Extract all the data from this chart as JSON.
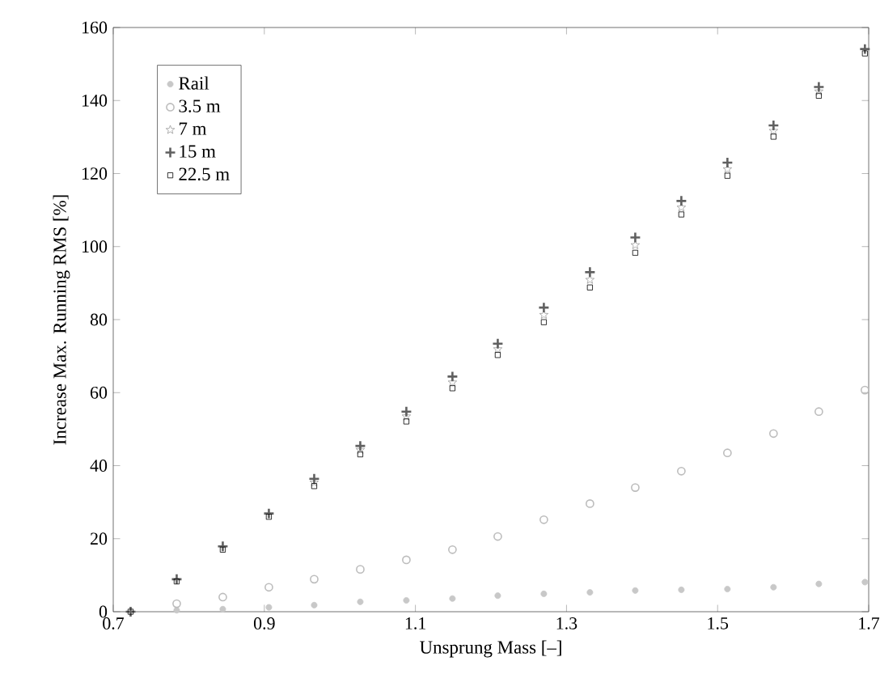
{
  "chart_data": {
    "type": "scatter",
    "xlabel": "Unsprung Mass [–]",
    "ylabel": "Increase Max. Running RMS [%]",
    "x": [
      0.723,
      0.784,
      0.845,
      0.906,
      0.966,
      1.027,
      1.088,
      1.149,
      1.209,
      1.27,
      1.331,
      1.391,
      1.452,
      1.513,
      1.574,
      1.634,
      1.695
    ],
    "series": [
      {
        "name": "Rail",
        "color": "#c8c8c8",
        "marker": "circle",
        "values": [
          null,
          0.4,
          0.7,
          1.2,
          1.8,
          2.7,
          3.1,
          3.6,
          4.4,
          4.9,
          5.3,
          5.8,
          6.0,
          6.2,
          6.7,
          7.6,
          8.1
        ]
      },
      {
        "name": "3.5 m",
        "color": "#bdbdbd",
        "marker": "circle_open",
        "values": [
          null,
          2.2,
          4.0,
          6.7,
          8.9,
          11.6,
          14.2,
          17.0,
          20.6,
          25.2,
          29.6,
          34.0,
          38.5,
          43.5,
          48.8,
          54.8,
          60.7
        ]
      },
      {
        "name": "7 m",
        "color": "#9a9a9a",
        "marker": "star",
        "values": [
          null,
          null,
          null,
          null,
          35.4,
          44.3,
          53.5,
          62.8,
          71.9,
          81.3,
          90.9,
          100.4,
          110.7,
          121.2,
          131.7,
          142.5,
          null
        ]
      },
      {
        "name": "15 m",
        "color": "#606060",
        "marker": "cross",
        "values": [
          0,
          8.9,
          17.9,
          26.9,
          36.4,
          45.4,
          54.8,
          64.4,
          73.4,
          83.3,
          93.0,
          102.5,
          112.5,
          123.0,
          133.2,
          143.7,
          154.1
        ]
      },
      {
        "name": "22.5 m",
        "color": "#000000",
        "marker": "square",
        "values": [
          0,
          8.3,
          17.0,
          26.0,
          34.4,
          43.1,
          52.1,
          61.2,
          70.3,
          79.3,
          88.8,
          98.3,
          108.8,
          119.4,
          130.1,
          141.3,
          152.9
        ]
      }
    ],
    "xlim": [
      0.7,
      1.7
    ],
    "xticks": [
      0.7,
      0.9,
      1.1,
      1.3,
      1.5,
      1.7
    ],
    "ylim": [
      0,
      160
    ],
    "yticks": [
      0,
      20,
      40,
      60,
      80,
      100,
      120,
      140,
      160
    ],
    "grid": false,
    "legend": "top left"
  }
}
